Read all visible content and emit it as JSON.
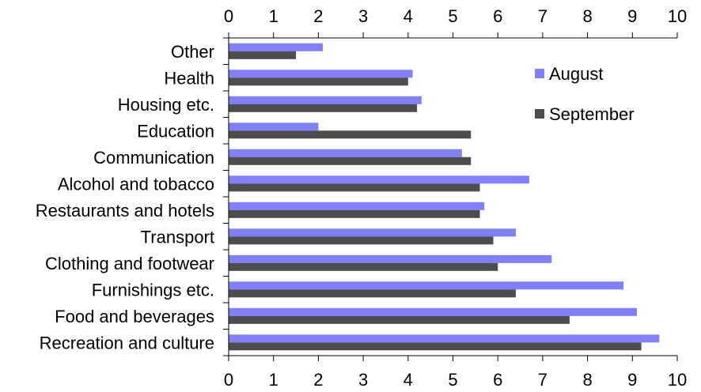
{
  "chart_data": {
    "type": "bar",
    "orientation": "horizontal",
    "categories": [
      "Other",
      "Health",
      "Housing etc.",
      "Education",
      "Communication",
      "Alcohol and tobacco",
      "Restaurants and hotels",
      "Transport",
      "Clothing and footwear",
      "Furnishings etc.",
      "Food and beverages",
      "Recreation and culture"
    ],
    "series": [
      {
        "name": "August",
        "color": "#8080ff",
        "values": [
          2.1,
          4.1,
          4.3,
          2.0,
          5.2,
          6.7,
          5.7,
          6.4,
          7.2,
          8.8,
          9.1,
          9.6
        ]
      },
      {
        "name": "September",
        "color": "#4d4d4d",
        "values": [
          1.5,
          4.0,
          4.2,
          5.4,
          5.4,
          5.6,
          5.6,
          5.9,
          6.0,
          6.4,
          7.6,
          9.2
        ]
      }
    ],
    "xlim": [
      0,
      10
    ],
    "xticks": [
      "0",
      "1",
      "2",
      "3",
      "4",
      "5",
      "6",
      "7",
      "8",
      "9",
      "10"
    ],
    "axis_top_and_bottom": true,
    "grid": false,
    "legend_position": "top-right"
  }
}
